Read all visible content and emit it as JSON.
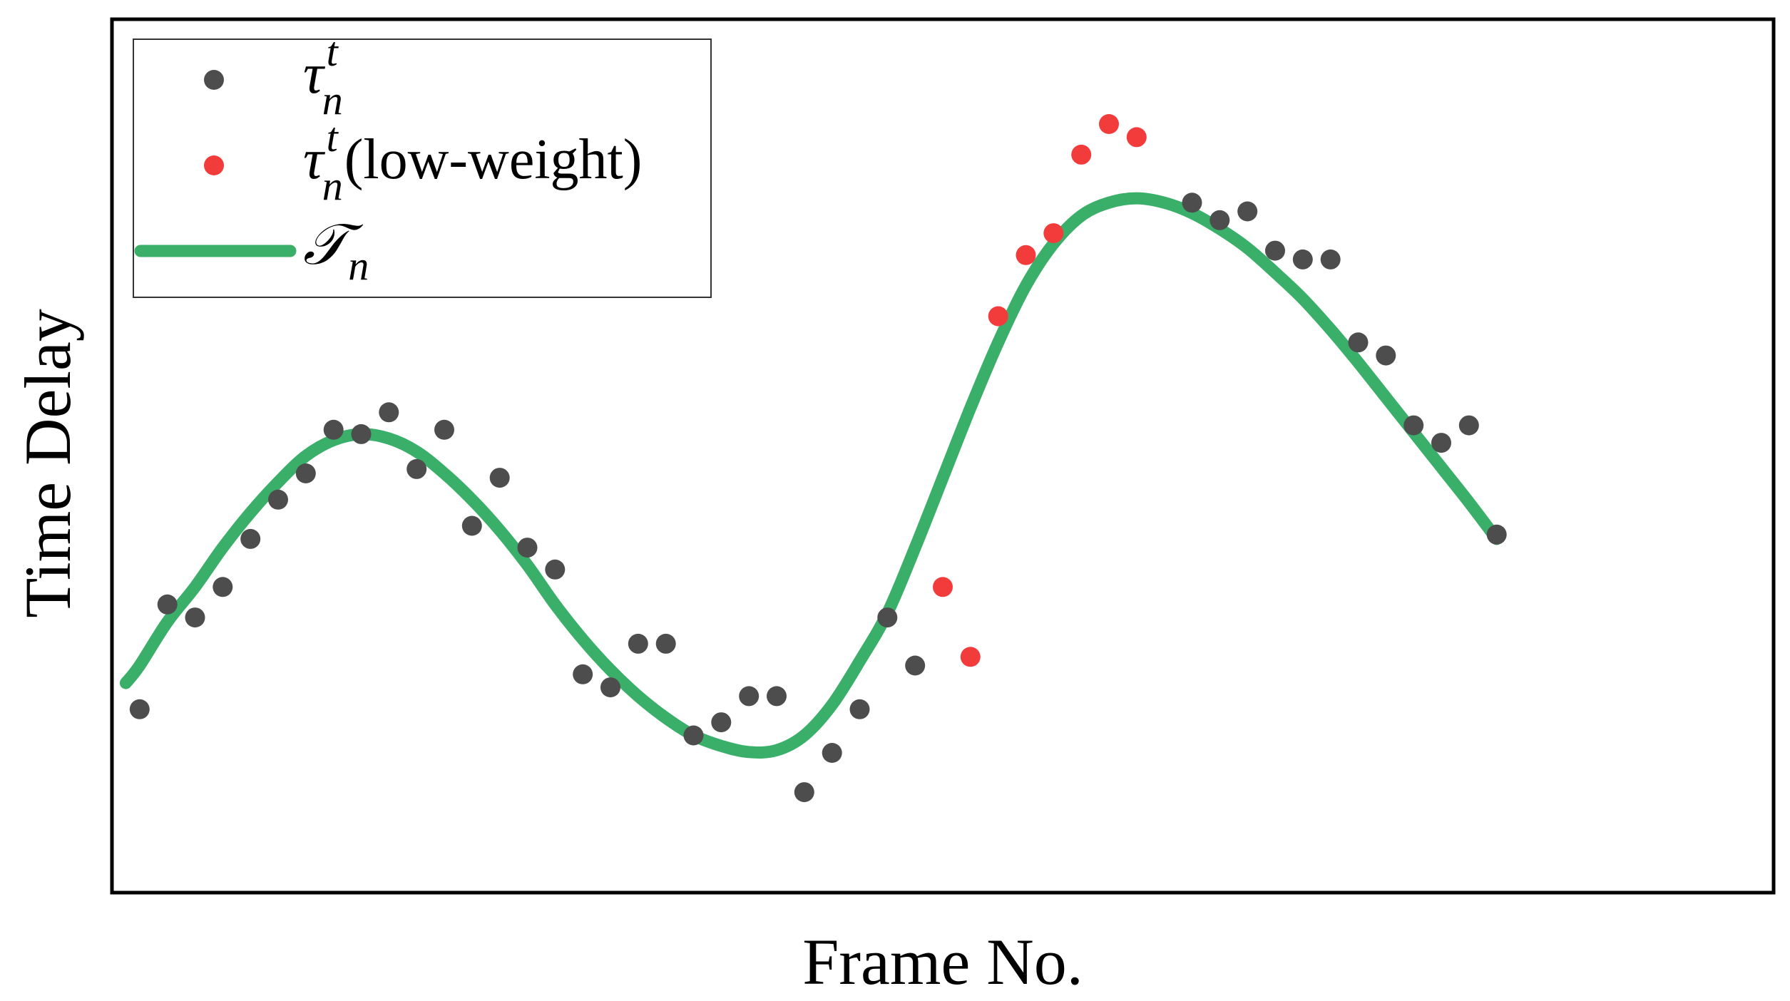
{
  "chart_data": {
    "type": "scatter",
    "xlabel": "Frame No.",
    "ylabel": "Time Delay",
    "xlim": [
      -1,
      59
    ],
    "ylim": [
      0,
      100
    ],
    "show_ticks": false,
    "grid": false,
    "legend_position": "top-left",
    "series": [
      {
        "kind": "scatter",
        "color": "#4d4d4d",
        "legend": {
          "symbol": "τ",
          "sub": "n",
          "sup": "t",
          "suffix": ""
        },
        "points": [
          [
            0,
            21.0
          ],
          [
            1,
            33.0
          ],
          [
            2,
            31.5
          ],
          [
            3,
            35.0
          ],
          [
            4,
            40.5
          ],
          [
            5,
            45.0
          ],
          [
            6,
            48.0
          ],
          [
            7,
            53.0
          ],
          [
            8,
            52.5
          ],
          [
            9,
            55.0
          ],
          [
            10,
            48.5
          ],
          [
            11,
            53.0
          ],
          [
            12,
            42.0
          ],
          [
            13,
            47.5
          ],
          [
            14,
            39.5
          ],
          [
            15,
            37.0
          ],
          [
            16,
            25.0
          ],
          [
            17,
            23.5
          ],
          [
            18,
            28.5
          ],
          [
            19,
            28.5
          ],
          [
            20,
            18.0
          ],
          [
            21,
            19.5
          ],
          [
            22,
            22.5
          ],
          [
            23,
            22.5
          ],
          [
            24,
            11.5
          ],
          [
            25,
            16.0
          ],
          [
            26,
            21.0
          ],
          [
            27,
            31.5
          ],
          [
            28,
            26.0
          ],
          [
            38,
            79.0
          ],
          [
            39,
            77.0
          ],
          [
            40,
            78.0
          ],
          [
            41,
            73.5
          ],
          [
            42,
            72.5
          ],
          [
            43,
            72.5
          ],
          [
            44,
            63.0
          ],
          [
            45,
            61.5
          ],
          [
            46,
            53.5
          ],
          [
            47,
            51.5
          ],
          [
            48,
            53.5
          ],
          [
            49,
            41.0
          ]
        ]
      },
      {
        "kind": "scatter",
        "color": "#f23c3c",
        "legend": {
          "symbol": "τ",
          "sub": "n",
          "sup": "t",
          "suffix": "(low-weight)"
        },
        "points": [
          [
            29,
            35.0
          ],
          [
            30,
            27.0
          ],
          [
            31,
            66.0
          ],
          [
            32,
            73.0
          ],
          [
            33,
            75.5
          ],
          [
            34,
            84.5
          ],
          [
            35,
            88.0
          ],
          [
            36,
            86.5
          ]
        ]
      },
      {
        "kind": "line",
        "color": "#3aaf6a",
        "legend": {
          "symbol": "𝒯",
          "sub": "n",
          "sup": "",
          "suffix": ""
        },
        "points": [
          [
            -0.5,
            24.0
          ],
          [
            0,
            26.0
          ],
          [
            1,
            31.0
          ],
          [
            2,
            35.0
          ],
          [
            3,
            39.5
          ],
          [
            4,
            43.5
          ],
          [
            5,
            47.0
          ],
          [
            6,
            50.0
          ],
          [
            7,
            51.8
          ],
          [
            8,
            52.5
          ],
          [
            9,
            52.0
          ],
          [
            10,
            50.5
          ],
          [
            11,
            48.0
          ],
          [
            12,
            45.0
          ],
          [
            13,
            41.5
          ],
          [
            14,
            37.5
          ],
          [
            15,
            33.0
          ],
          [
            16,
            29.0
          ],
          [
            17,
            25.5
          ],
          [
            18,
            22.5
          ],
          [
            19,
            20.0
          ],
          [
            20,
            18.0
          ],
          [
            21,
            16.8
          ],
          [
            22,
            16.1
          ],
          [
            23,
            16.3
          ],
          [
            24,
            18.0
          ],
          [
            25,
            21.5
          ],
          [
            26,
            26.5
          ],
          [
            27,
            32.0
          ],
          [
            28,
            39.5
          ],
          [
            29,
            47.5
          ],
          [
            30,
            55.5
          ],
          [
            31,
            63.0
          ],
          [
            32,
            69.5
          ],
          [
            33,
            74.3
          ],
          [
            34,
            77.5
          ],
          [
            35,
            79.0
          ],
          [
            36,
            79.5
          ],
          [
            37,
            79.0
          ],
          [
            38,
            77.8
          ],
          [
            39,
            76.0
          ],
          [
            40,
            73.8
          ],
          [
            41,
            71.0
          ],
          [
            42,
            68.0
          ],
          [
            43,
            64.5
          ],
          [
            44,
            60.7
          ],
          [
            45,
            56.7
          ],
          [
            46,
            52.7
          ],
          [
            47,
            48.7
          ],
          [
            48,
            44.7
          ],
          [
            49,
            40.5
          ]
        ]
      }
    ]
  }
}
